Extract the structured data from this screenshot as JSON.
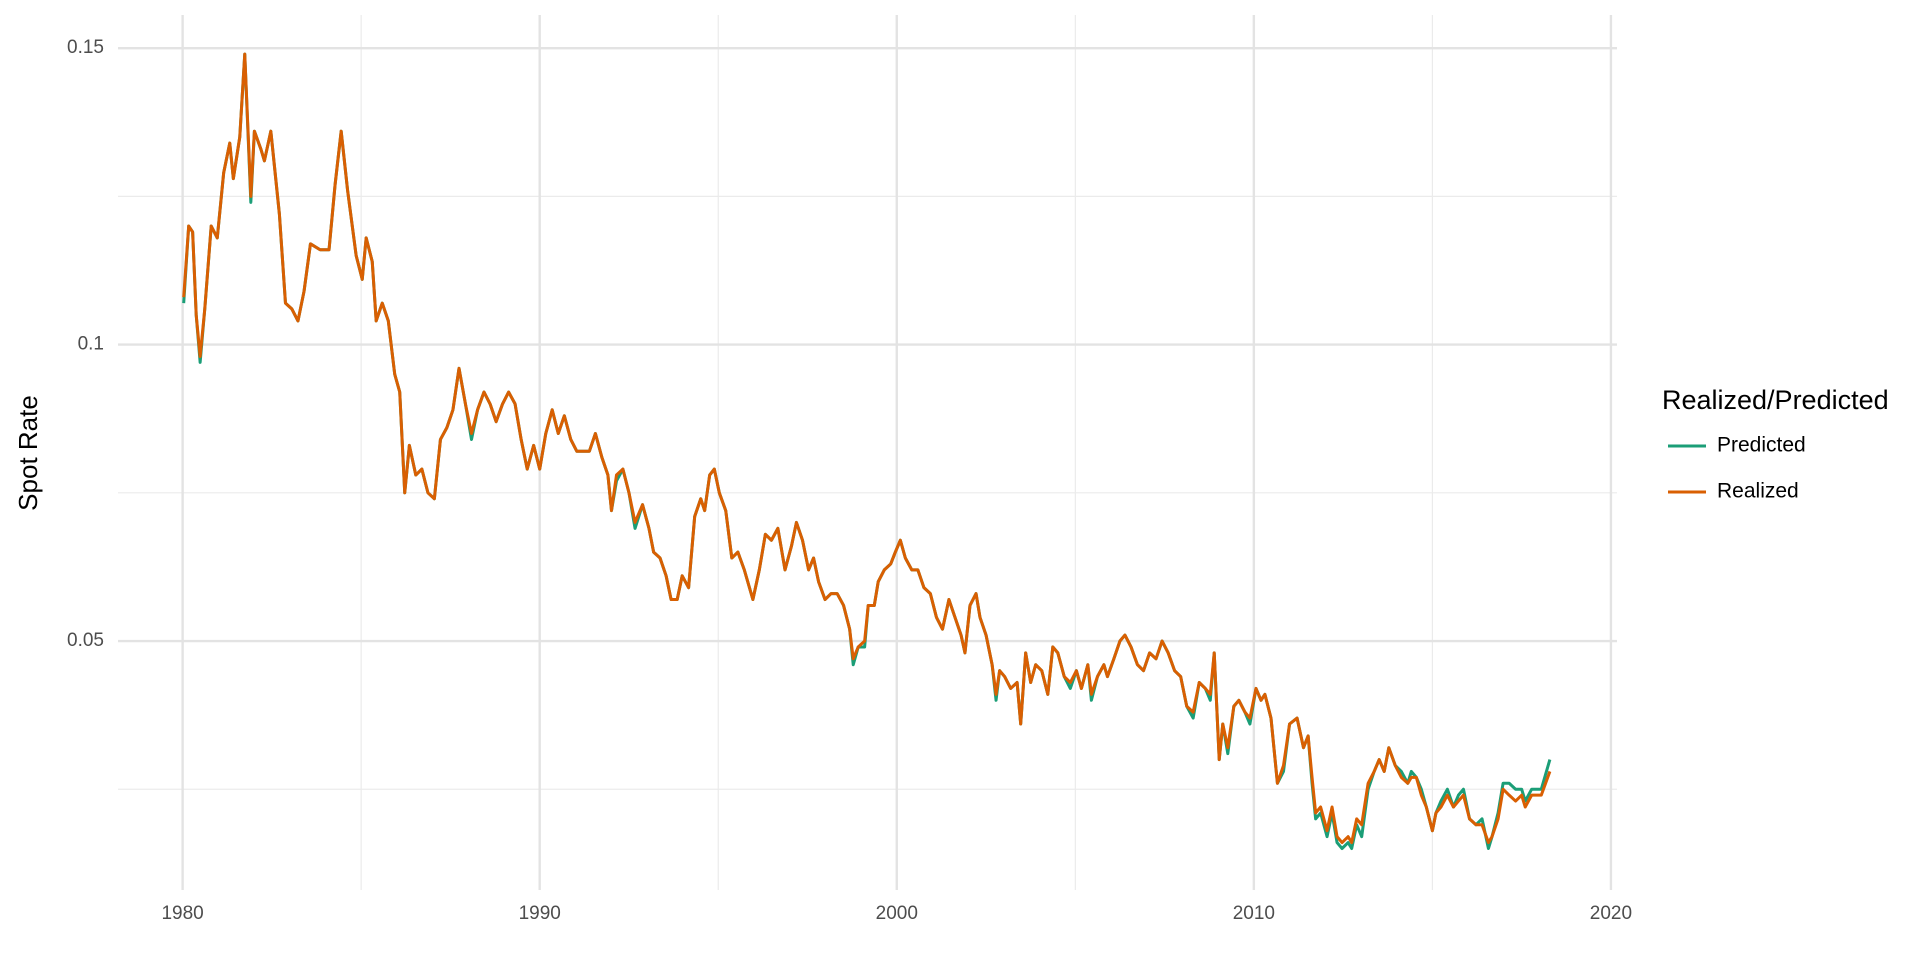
{
  "chart_data": {
    "type": "line",
    "y_label": "Spot Rate",
    "legend_title": "Realized/Predicted",
    "legend": "right",
    "grid": true,
    "xlim": [
      1978.19,
      2020.17
    ],
    "ylim": [
      0.008,
      0.1556
    ],
    "xticks": [
      1980,
      1990,
      2000,
      2010,
      2020
    ],
    "xticks_minor": [
      1985,
      1995,
      2005,
      2015
    ],
    "yticks": [
      0.05,
      0.1,
      0.15
    ],
    "yticks_minor": [
      0.025,
      0.075,
      0.125
    ],
    "x": [
      1980.03,
      1980.17,
      1980.28,
      1980.38,
      1980.49,
      1980.62,
      1980.8,
      1980.97,
      1981.15,
      1981.32,
      1981.42,
      1981.6,
      1981.74,
      1981.91,
      1982.01,
      1982.19,
      1982.29,
      1982.47,
      1982.71,
      1982.88,
      1983.06,
      1983.23,
      1983.4,
      1983.58,
      1983.85,
      1984.1,
      1984.27,
      1984.44,
      1984.62,
      1984.86,
      1985.03,
      1985.14,
      1985.31,
      1985.42,
      1985.59,
      1985.76,
      1985.94,
      1986.08,
      1986.22,
      1986.35,
      1986.53,
      1986.7,
      1986.87,
      1987.05,
      1987.22,
      1987.4,
      1987.57,
      1987.74,
      1987.92,
      1988.09,
      1988.26,
      1988.44,
      1988.61,
      1988.78,
      1988.96,
      1989.13,
      1989.31,
      1989.48,
      1989.65,
      1989.83,
      1990.0,
      1990.17,
      1990.35,
      1990.52,
      1990.69,
      1990.87,
      1991.04,
      1991.22,
      1991.39,
      1991.56,
      1991.74,
      1991.91,
      1992.01,
      1992.15,
      1992.33,
      1992.5,
      1992.67,
      1992.88,
      1993.06,
      1993.19,
      1993.37,
      1993.54,
      1993.68,
      1993.85,
      1993.99,
      1994.17,
      1994.34,
      1994.51,
      1994.62,
      1994.76,
      1994.89,
      1995.03,
      1995.21,
      1995.38,
      1995.55,
      1995.73,
      1995.97,
      1996.15,
      1996.32,
      1996.49,
      1996.67,
      1996.87,
      1997.05,
      1997.19,
      1997.36,
      1997.53,
      1997.67,
      1997.81,
      1997.99,
      1998.16,
      1998.33,
      1998.51,
      1998.68,
      1998.78,
      1998.92,
      1999.1,
      1999.2,
      1999.37,
      1999.48,
      1999.65,
      1999.83,
      1999.96,
      2000.1,
      2000.24,
      2000.42,
      2000.59,
      2000.76,
      2000.94,
      2001.11,
      2001.28,
      2001.46,
      2001.63,
      2001.8,
      2001.91,
      2002.05,
      2002.22,
      2002.33,
      2002.5,
      2002.67,
      2002.78,
      2002.88,
      2003.02,
      2003.19,
      2003.37,
      2003.47,
      2003.61,
      2003.75,
      2003.89,
      2004.06,
      2004.23,
      2004.37,
      2004.51,
      2004.69,
      2004.86,
      2005.03,
      2005.17,
      2005.35,
      2005.45,
      2005.62,
      2005.8,
      2005.9,
      2006.08,
      2006.25,
      2006.39,
      2006.56,
      2006.74,
      2006.91,
      2007.08,
      2007.26,
      2007.43,
      2007.6,
      2007.78,
      2007.95,
      2008.12,
      2008.3,
      2008.47,
      2008.64,
      2008.78,
      2008.89,
      2009.03,
      2009.13,
      2009.27,
      2009.44,
      2009.58,
      2009.75,
      2009.89,
      2010.06,
      2010.2,
      2010.31,
      2010.48,
      2010.66,
      2010.83,
      2011.0,
      2011.21,
      2011.39,
      2011.52,
      2011.63,
      2011.73,
      2011.87,
      2012.05,
      2012.19,
      2012.33,
      2012.47,
      2012.64,
      2012.74,
      2012.88,
      2013.02,
      2013.2,
      2013.37,
      2013.51,
      2013.65,
      2013.78,
      2013.96,
      2014.13,
      2014.31,
      2014.41,
      2014.55,
      2014.69,
      2014.83,
      2015.0,
      2015.1,
      2015.24,
      2015.42,
      2015.59,
      2015.73,
      2015.87,
      2016.04,
      2016.22,
      2016.39,
      2016.57,
      2016.67,
      2016.84,
      2016.98,
      2017.15,
      2017.33,
      2017.5,
      2017.6,
      2017.78,
      2017.88,
      2018.05,
      2018.29
    ],
    "series": [
      {
        "name": "Predicted",
        "color": "#1b9e77",
        "values": [
          0.107,
          0.12,
          0.119,
          0.105,
          0.097,
          0.106,
          0.12,
          0.118,
          0.129,
          0.134,
          0.128,
          0.135,
          0.149,
          0.124,
          0.136,
          0.133,
          0.131,
          0.136,
          0.122,
          0.107,
          0.106,
          0.104,
          0.109,
          0.117,
          0.116,
          0.116,
          0.127,
          0.136,
          0.126,
          0.115,
          0.111,
          0.118,
          0.114,
          0.104,
          0.107,
          0.104,
          0.095,
          0.092,
          0.075,
          0.083,
          0.078,
          0.079,
          0.075,
          0.074,
          0.084,
          0.086,
          0.089,
          0.096,
          0.09,
          0.084,
          0.089,
          0.092,
          0.09,
          0.087,
          0.09,
          0.092,
          0.09,
          0.084,
          0.079,
          0.083,
          0.079,
          0.085,
          0.089,
          0.085,
          0.088,
          0.084,
          0.082,
          0.082,
          0.082,
          0.085,
          0.081,
          0.078,
          0.072,
          0.077,
          0.079,
          0.075,
          0.069,
          0.073,
          0.069,
          0.065,
          0.064,
          0.061,
          0.057,
          0.057,
          0.061,
          0.059,
          0.071,
          0.074,
          0.072,
          0.078,
          0.079,
          0.075,
          0.072,
          0.064,
          0.065,
          0.062,
          0.057,
          0.062,
          0.068,
          0.067,
          0.069,
          0.062,
          0.066,
          0.07,
          0.067,
          0.062,
          0.064,
          0.06,
          0.057,
          0.058,
          0.058,
          0.056,
          0.052,
          0.046,
          0.049,
          0.049,
          0.056,
          0.056,
          0.06,
          0.062,
          0.063,
          0.065,
          0.067,
          0.064,
          0.062,
          0.062,
          0.059,
          0.058,
          0.054,
          0.052,
          0.057,
          0.054,
          0.051,
          0.048,
          0.056,
          0.058,
          0.054,
          0.051,
          0.046,
          0.04,
          0.045,
          0.044,
          0.042,
          0.043,
          0.036,
          0.048,
          0.043,
          0.046,
          0.045,
          0.041,
          0.049,
          0.048,
          0.044,
          0.042,
          0.045,
          0.042,
          0.046,
          0.04,
          0.044,
          0.046,
          0.044,
          0.047,
          0.05,
          0.051,
          0.049,
          0.046,
          0.045,
          0.048,
          0.047,
          0.05,
          0.048,
          0.045,
          0.044,
          0.039,
          0.037,
          0.043,
          0.042,
          0.04,
          0.048,
          0.03,
          0.036,
          0.031,
          0.039,
          0.04,
          0.038,
          0.036,
          0.042,
          0.04,
          0.041,
          0.037,
          0.026,
          0.028,
          0.036,
          0.037,
          0.032,
          0.034,
          0.026,
          0.02,
          0.021,
          0.017,
          0.021,
          0.016,
          0.015,
          0.016,
          0.015,
          0.019,
          0.017,
          0.025,
          0.028,
          0.03,
          0.028,
          0.032,
          0.029,
          0.028,
          0.026,
          0.028,
          0.027,
          0.025,
          0.022,
          0.018,
          0.021,
          0.023,
          0.025,
          0.022,
          0.024,
          0.025,
          0.02,
          0.019,
          0.02,
          0.015,
          0.017,
          0.021,
          0.026,
          0.026,
          0.025,
          0.025,
          0.023,
          0.025,
          0.025,
          0.025,
          0.03
        ]
      },
      {
        "name": "Realized",
        "color": "#d95f02",
        "values": [
          0.108,
          0.12,
          0.119,
          0.105,
          0.098,
          0.106,
          0.12,
          0.118,
          0.129,
          0.134,
          0.128,
          0.135,
          0.149,
          0.125,
          0.136,
          0.133,
          0.131,
          0.136,
          0.122,
          0.107,
          0.106,
          0.104,
          0.109,
          0.117,
          0.116,
          0.116,
          0.127,
          0.136,
          0.126,
          0.115,
          0.111,
          0.118,
          0.114,
          0.104,
          0.107,
          0.104,
          0.095,
          0.092,
          0.075,
          0.083,
          0.078,
          0.079,
          0.075,
          0.074,
          0.084,
          0.086,
          0.089,
          0.096,
          0.09,
          0.085,
          0.089,
          0.092,
          0.09,
          0.087,
          0.09,
          0.092,
          0.09,
          0.084,
          0.079,
          0.083,
          0.079,
          0.085,
          0.089,
          0.085,
          0.088,
          0.084,
          0.082,
          0.082,
          0.082,
          0.085,
          0.081,
          0.078,
          0.072,
          0.078,
          0.079,
          0.075,
          0.07,
          0.073,
          0.069,
          0.065,
          0.064,
          0.061,
          0.057,
          0.057,
          0.061,
          0.059,
          0.071,
          0.074,
          0.072,
          0.078,
          0.079,
          0.075,
          0.072,
          0.064,
          0.065,
          0.062,
          0.057,
          0.062,
          0.068,
          0.067,
          0.069,
          0.062,
          0.066,
          0.07,
          0.067,
          0.062,
          0.064,
          0.06,
          0.057,
          0.058,
          0.058,
          0.056,
          0.052,
          0.047,
          0.049,
          0.05,
          0.056,
          0.056,
          0.06,
          0.062,
          0.063,
          0.065,
          0.067,
          0.064,
          0.062,
          0.062,
          0.059,
          0.058,
          0.054,
          0.052,
          0.057,
          0.054,
          0.051,
          0.048,
          0.056,
          0.058,
          0.054,
          0.051,
          0.046,
          0.041,
          0.045,
          0.044,
          0.042,
          0.043,
          0.036,
          0.048,
          0.043,
          0.046,
          0.045,
          0.041,
          0.049,
          0.048,
          0.044,
          0.043,
          0.045,
          0.042,
          0.046,
          0.041,
          0.044,
          0.046,
          0.044,
          0.047,
          0.05,
          0.051,
          0.049,
          0.046,
          0.045,
          0.048,
          0.047,
          0.05,
          0.048,
          0.045,
          0.044,
          0.039,
          0.038,
          0.043,
          0.042,
          0.041,
          0.048,
          0.03,
          0.036,
          0.032,
          0.039,
          0.04,
          0.038,
          0.037,
          0.042,
          0.04,
          0.041,
          0.037,
          0.026,
          0.029,
          0.036,
          0.037,
          0.032,
          0.034,
          0.027,
          0.021,
          0.022,
          0.018,
          0.022,
          0.017,
          0.016,
          0.017,
          0.016,
          0.02,
          0.019,
          0.026,
          0.028,
          0.03,
          0.028,
          0.032,
          0.029,
          0.027,
          0.026,
          0.027,
          0.027,
          0.024,
          0.022,
          0.018,
          0.021,
          0.022,
          0.024,
          0.022,
          0.023,
          0.024,
          0.02,
          0.019,
          0.019,
          0.016,
          0.017,
          0.02,
          0.025,
          0.024,
          0.023,
          0.024,
          0.022,
          0.024,
          0.024,
          0.024,
          0.028
        ]
      }
    ]
  }
}
